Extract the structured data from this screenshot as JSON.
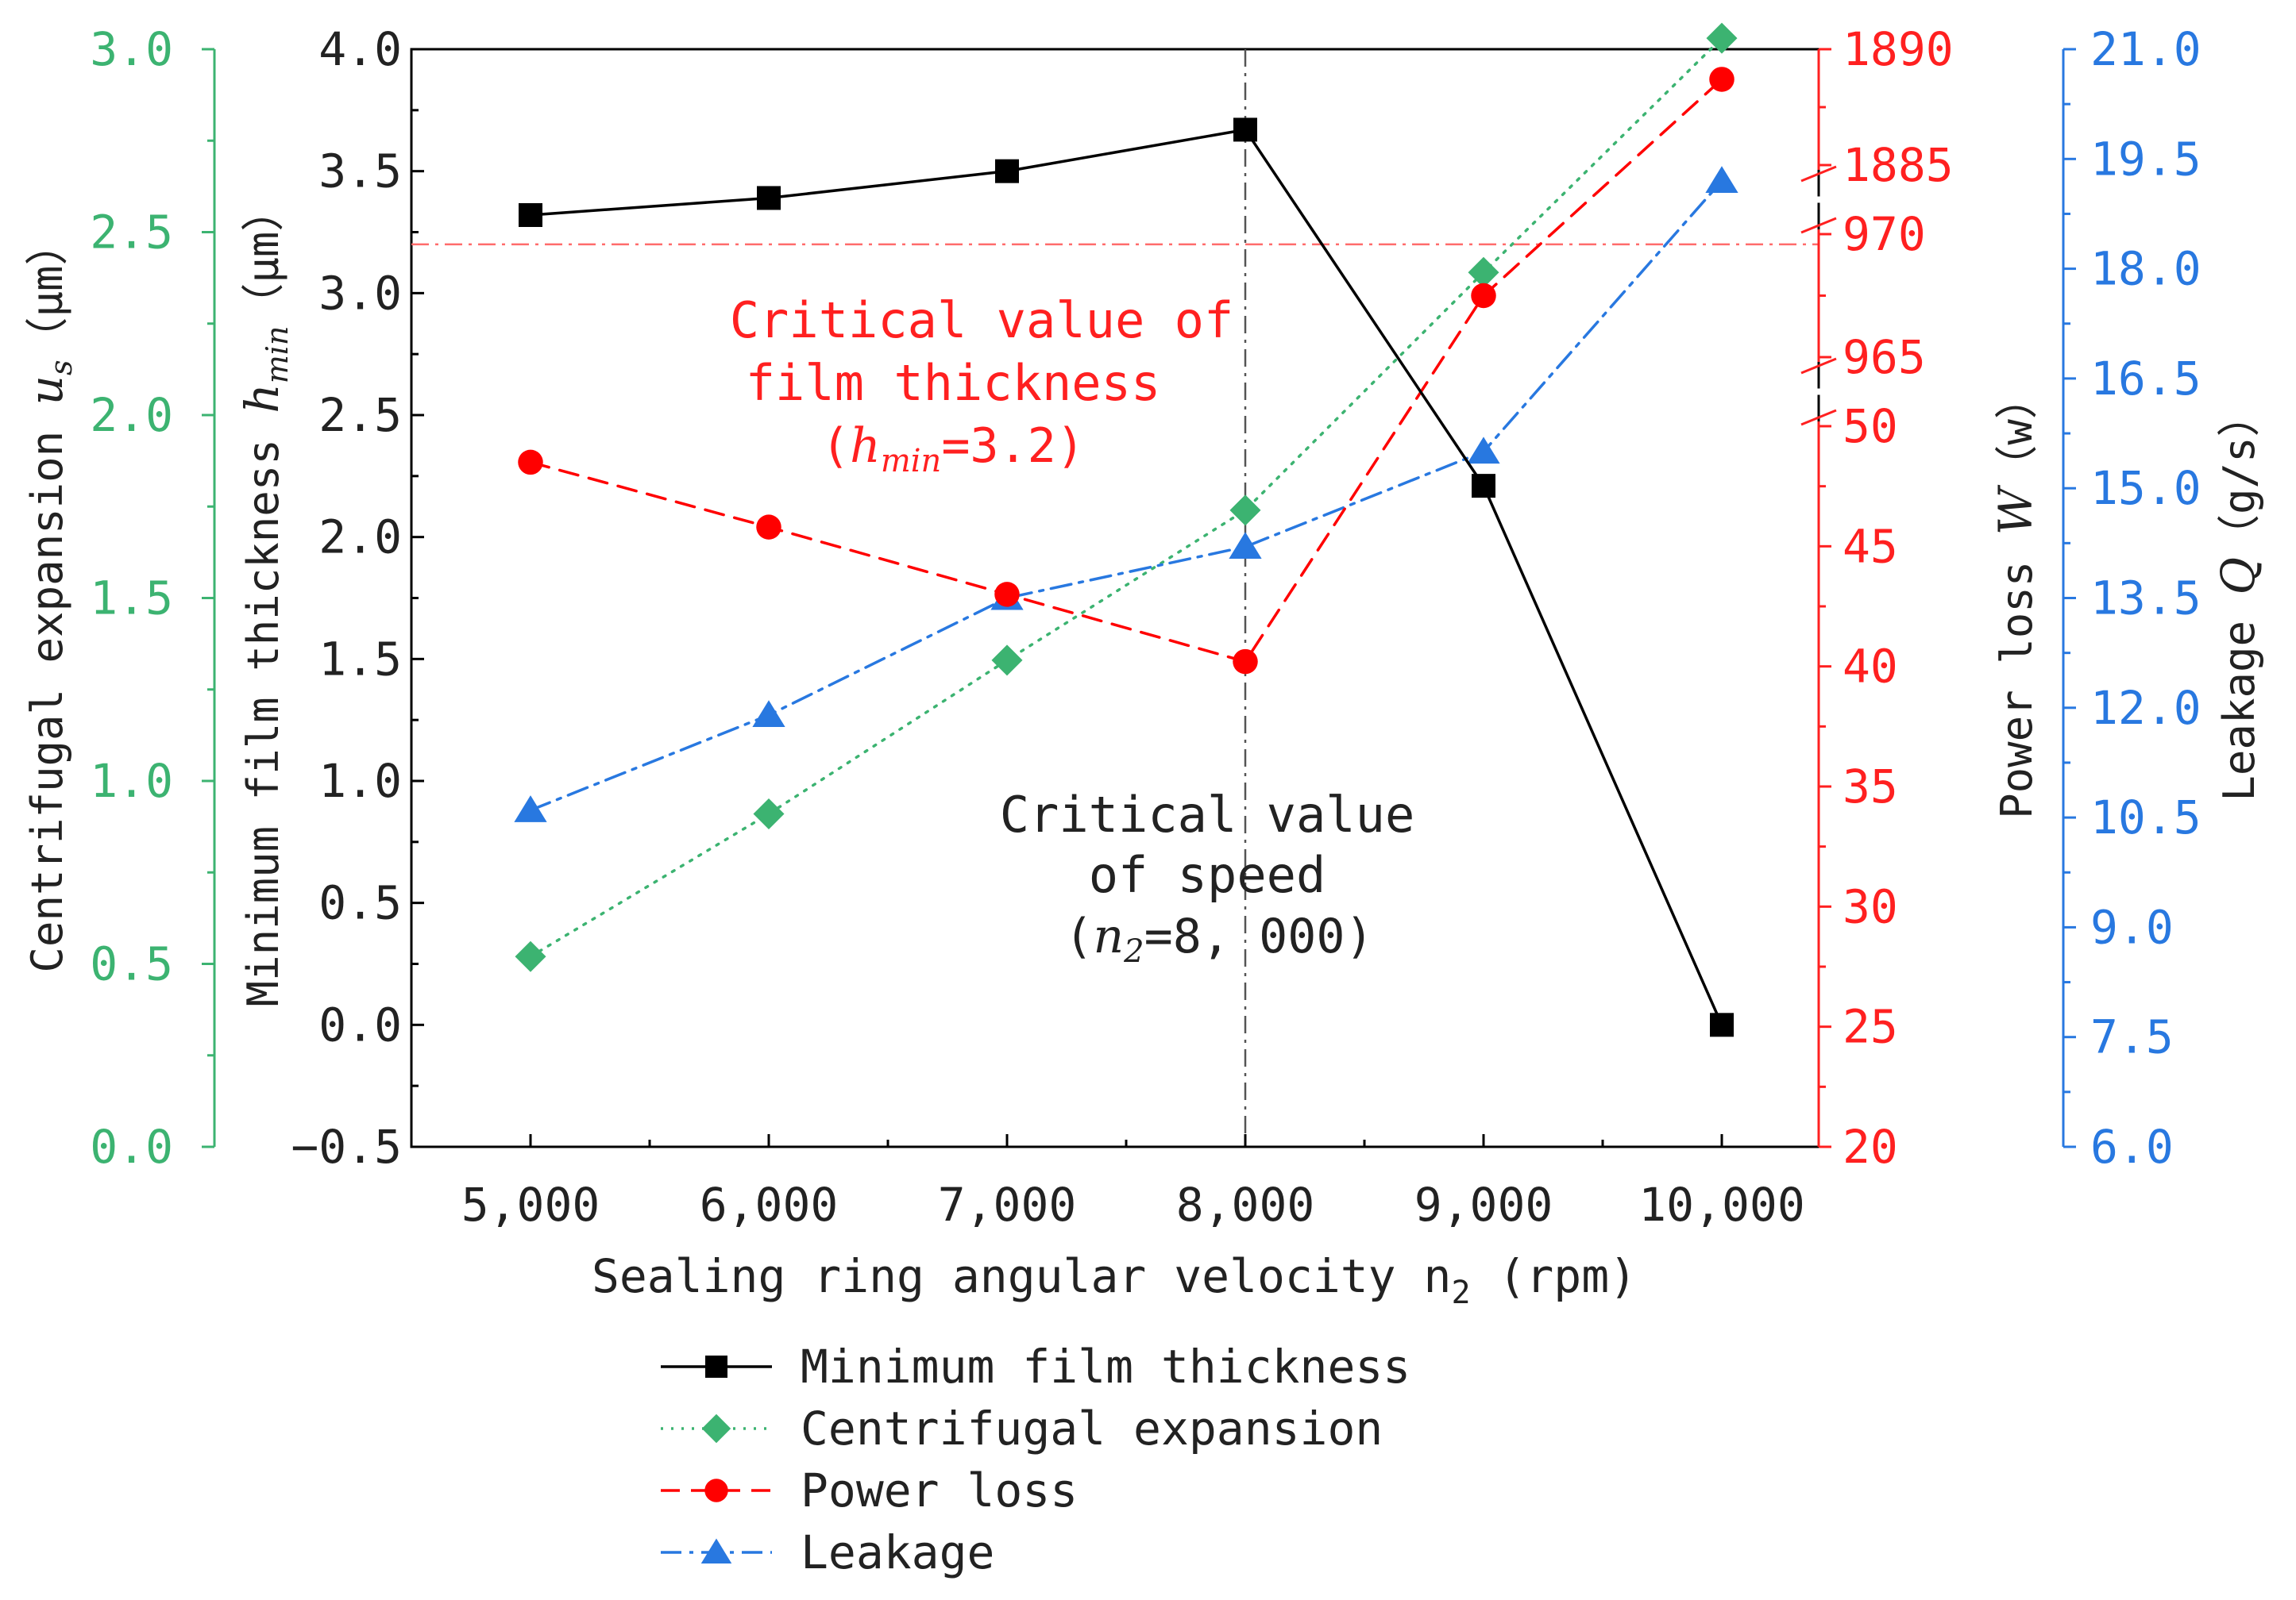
{
  "chart_data": {
    "type": "line",
    "xlabel": "Sealing ring angular velocity n",
    "xlabel_sub": "2",
    "xlabel_unit": " (rpm)",
    "categories": [
      "5,000",
      "6,000",
      "7,000",
      "8,000",
      "9,000",
      "10,000"
    ],
    "x": [
      5000,
      6000,
      7000,
      8000,
      9000,
      10000
    ],
    "axes": {
      "hmin": {
        "label": "Minimum film thickness",
        "symbol": "h",
        "symbol_sub": "min",
        "unit": "（μm）",
        "ticks": [
          "4.0",
          "3.5",
          "3.0",
          "2.5",
          "2.0",
          "1.5",
          "1.0",
          "0.5",
          "0.0",
          "−0.5"
        ],
        "range": [
          -0.5,
          4.0
        ]
      },
      "us": {
        "label": "Centrifugal expansion",
        "symbol": "u",
        "symbol_sub": "s",
        "unit": "（μm）",
        "ticks": [
          "3.0",
          "2.5",
          "2.0",
          "1.5",
          "1.0",
          "0.5",
          "0.0"
        ],
        "range": [
          0.0,
          3.0
        ]
      },
      "power": {
        "label": "Power loss",
        "symbol": "W",
        "unit": "（w）",
        "ticks": [
          "1890",
          "1885",
          "970",
          "965",
          "50",
          "45",
          "40",
          "35",
          "30",
          "25",
          "20"
        ],
        "range_lower": [
          20,
          50
        ],
        "range_middle": [
          965,
          970
        ],
        "range_upper": [
          1885,
          1890
        ]
      },
      "leakage": {
        "label": "Leakage",
        "symbol": "Q",
        "unit": "（g/s）",
        "ticks": [
          "21.0",
          "19.5",
          "18.0",
          "16.5",
          "15.0",
          "13.5",
          "12.0",
          "10.5",
          "9.0",
          "7.5",
          "6.0"
        ],
        "range": [
          6.0,
          21.0
        ]
      }
    },
    "series": [
      {
        "name": "Minimum film thickness",
        "axis": "hmin",
        "color": "#000000",
        "marker": "square",
        "dash": "solid",
        "values": [
          3.32,
          3.39,
          3.5,
          3.67,
          2.21,
          0.0
        ]
      },
      {
        "name": "Centrifugal expansion",
        "axis": "us",
        "color": "#3cb371",
        "marker": "diamond",
        "dash": "dot",
        "values": [
          0.52,
          0.91,
          1.33,
          1.74,
          2.39,
          3.03
        ]
      },
      {
        "name": "Power loss",
        "axis": "power",
        "color": "#ff0000",
        "marker": "circle",
        "dash": "dash",
        "values": [
          48.5,
          45.8,
          43.0,
          40.2,
          967.5,
          1888.7
        ]
      },
      {
        "name": "Leakage",
        "axis": "leakage",
        "color": "#2878e0",
        "marker": "triangle",
        "dash": "dashdot",
        "values": [
          10.6,
          11.9,
          13.5,
          14.2,
          15.5,
          19.2
        ]
      }
    ],
    "reference_lines": [
      {
        "axis": "hmin",
        "value": 3.2,
        "orientation": "horizontal",
        "color": "#ff6b6b"
      },
      {
        "axis": "x",
        "value": 8000,
        "orientation": "vertical",
        "color": "#555555"
      }
    ],
    "annotations": {
      "film": {
        "line1": "Critical value of",
        "line2": "film thickness",
        "open": "(",
        "symbol": "h",
        "sub": "min",
        "value": "=3.2)"
      },
      "speed": {
        "line1": "Critical value",
        "line2": "of speed",
        "open": "(",
        "symbol": "n",
        "sub": "2",
        "value": "=8, 000)"
      }
    },
    "colors": {
      "hmin": "#000000",
      "us": "#3cb371",
      "power": "#ff2020",
      "leakage": "#2878e0"
    }
  }
}
